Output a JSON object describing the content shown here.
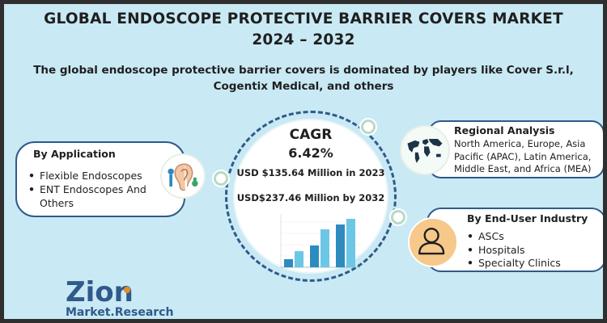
{
  "header": {
    "title_line1": "GLOBAL ENDOSCOPE PROTECTIVE BARRIER COVERS MARKET",
    "title_line2": "2024 – 2032",
    "subtitle_line1": "The global endoscope protective barrier covers is dominated by players like Cover S.r.l,",
    "subtitle_line2": "Cogentix Medical, and others"
  },
  "center": {
    "cagr_label": "CAGR",
    "cagr_value": "6.42%",
    "value_2023": "USD $135.64 Million in 2023",
    "value_2032": "USD$237.46 Million  by 2032"
  },
  "application": {
    "title": "By Application",
    "items": [
      "Flexible Endoscopes",
      "ENT Endoscopes And",
      "Others"
    ]
  },
  "regional": {
    "title": "Regional Analysis",
    "lines": [
      "North America, Europe, Asia",
      "Pacific (APAC), Latin America,",
      "Middle East, and Africa (MEA)"
    ]
  },
  "end_user": {
    "title": "By End-User Industry",
    "items": [
      "ASCs",
      "Hospitals",
      "Specialty Clinics"
    ]
  },
  "logo": {
    "brand": "Zion",
    "sub": "Market.Research",
    "brand_color": "#2f5a8a",
    "accent_color": "#e98b2a"
  },
  "colors": {
    "background": "#c9e9f4",
    "border": "#2f2f2f",
    "accent": "#2f5a8a",
    "bar_colors": [
      "#2e8bc0",
      "#6cc7e6"
    ]
  },
  "icons": {
    "application": "ear-examination-icon",
    "regional": "world-map-icon",
    "end_user": "person-icon"
  }
}
